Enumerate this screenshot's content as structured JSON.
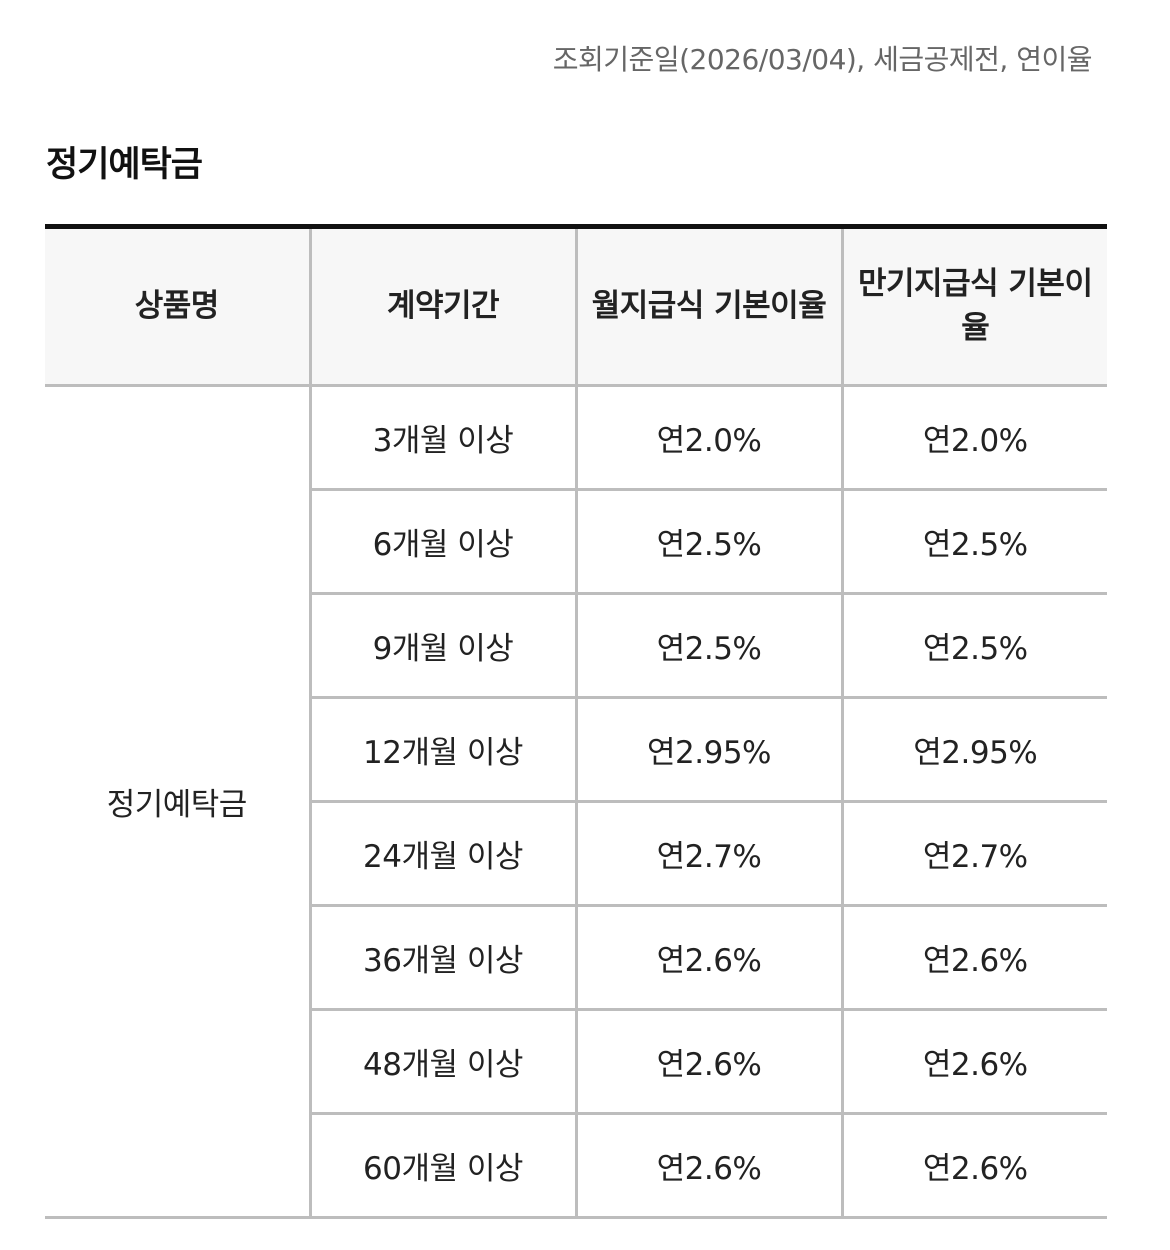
{
  "header": {
    "reference_note": "조회기준일(2026/03/04), 세금공제전, 연이율"
  },
  "section": {
    "title": "정기예탁금"
  },
  "table": {
    "columns": [
      "상품명",
      "계약기간",
      "월지급식 기본이율",
      "만기지급식 기본이율"
    ],
    "product_name": "정기예탁금",
    "rows": [
      {
        "period": "3개월 이상",
        "monthly": "연2.0%",
        "maturity": "연2.0%"
      },
      {
        "period": "6개월 이상",
        "monthly": "연2.5%",
        "maturity": "연2.5%"
      },
      {
        "period": "9개월 이상",
        "monthly": "연2.5%",
        "maturity": "연2.5%"
      },
      {
        "period": "12개월 이상",
        "monthly": "연2.95%",
        "maturity": "연2.95%"
      },
      {
        "period": "24개월 이상",
        "monthly": "연2.7%",
        "maturity": "연2.7%"
      },
      {
        "period": "36개월 이상",
        "monthly": "연2.6%",
        "maturity": "연2.6%"
      },
      {
        "period": "48개월 이상",
        "monthly": "연2.6%",
        "maturity": "연2.6%"
      },
      {
        "period": "60개월 이상",
        "monthly": "연2.6%",
        "maturity": "연2.6%"
      }
    ]
  }
}
